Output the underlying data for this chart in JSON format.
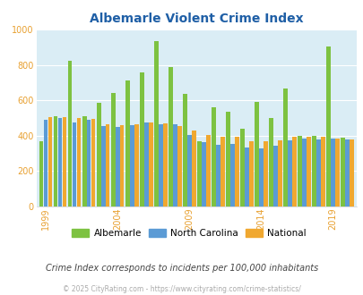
{
  "title": "Albemarle Violent Crime Index",
  "subtitle": "Crime Index corresponds to incidents per 100,000 inhabitants",
  "footer": "© 2025 CityRating.com - https://www.cityrating.com/crime-statistics/",
  "years": [
    1999,
    2000,
    2001,
    2002,
    2003,
    2004,
    2005,
    2006,
    2007,
    2008,
    2009,
    2010,
    2011,
    2012,
    2013,
    2014,
    2015,
    2016,
    2017,
    2018,
    2019,
    2020
  ],
  "albemarle": [
    370,
    510,
    825,
    510,
    585,
    640,
    710,
    760,
    935,
    790,
    635,
    370,
    560,
    535,
    440,
    590,
    500,
    665,
    400,
    400,
    905,
    390
  ],
  "nc": [
    490,
    500,
    475,
    490,
    455,
    450,
    460,
    475,
    465,
    465,
    405,
    365,
    350,
    355,
    335,
    330,
    345,
    375,
    385,
    380,
    385,
    380
  ],
  "national": [
    505,
    505,
    500,
    495,
    465,
    460,
    465,
    475,
    470,
    455,
    430,
    405,
    395,
    395,
    370,
    370,
    375,
    395,
    395,
    395,
    385,
    380
  ],
  "albemarle_color": "#7dc241",
  "nc_color": "#5b9bd5",
  "national_color": "#f0a830",
  "bg_color": "#daedf5",
  "ylim": [
    0,
    1000
  ],
  "yticks": [
    0,
    200,
    400,
    600,
    800,
    1000
  ],
  "xtick_years": [
    1999,
    2004,
    2009,
    2014,
    2019
  ],
  "title_color": "#1f5fa6",
  "tick_color": "#e8a030",
  "subtitle_color": "#444444",
  "footer_color": "#aaaaaa"
}
